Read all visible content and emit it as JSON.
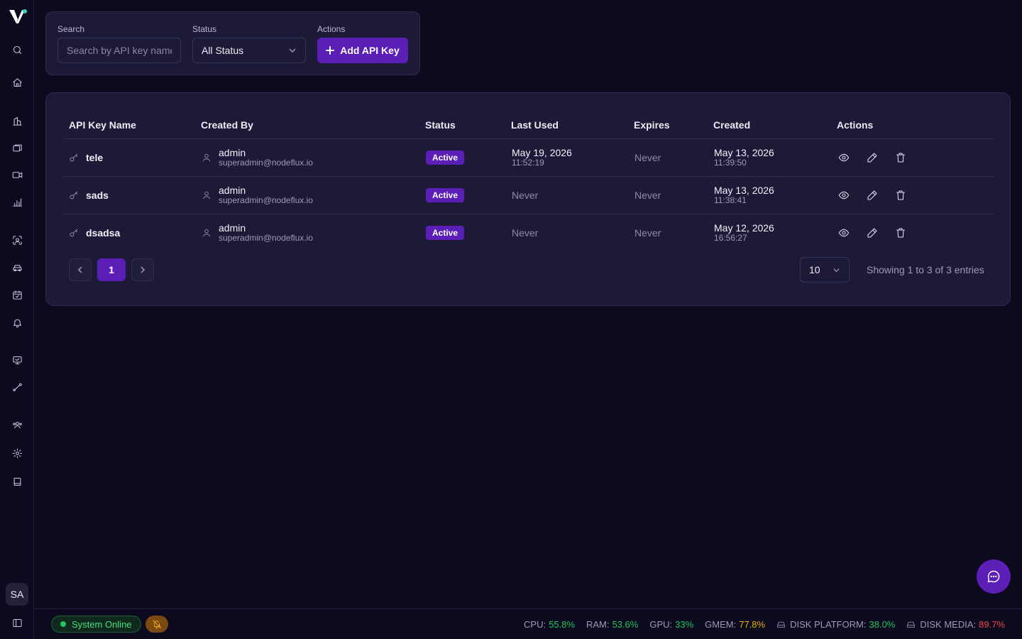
{
  "sidebar": {
    "logo": "nodeflux-logo",
    "icons": [
      "search-icon",
      "home-icon",
      "building-icon",
      "layers-icon",
      "camera-icon",
      "bar-chart-icon",
      "face-scan-icon",
      "car-icon",
      "calendar-icon",
      "bell-icon",
      "monitor-icon",
      "route-icon",
      "users-icon",
      "settings-icon",
      "book-icon"
    ],
    "avatar": "SA"
  },
  "filters": {
    "search_label": "Search",
    "search_placeholder": "Search by API key name",
    "status_label": "Status",
    "status_value": "All Status",
    "actions_label": "Actions",
    "add_button": "Add API Key"
  },
  "table": {
    "headers": [
      "API Key Name",
      "Created By",
      "Status",
      "Last Used",
      "Expires",
      "Created",
      "Actions"
    ],
    "rows": [
      {
        "name": "tele",
        "creator_name": "admin",
        "creator_email": "superadmin@nodeflux.io",
        "status": "Active",
        "last_used_date": "May 19, 2026",
        "last_used_time": "11:52:19",
        "expires": "Never",
        "created_date": "May 13, 2026",
        "created_time": "11:39:50"
      },
      {
        "name": "sads",
        "creator_name": "admin",
        "creator_email": "superadmin@nodeflux.io",
        "status": "Active",
        "last_used_date": "Never",
        "last_used_time": "",
        "expires": "Never",
        "created_date": "May 13, 2026",
        "created_time": "11:38:41"
      },
      {
        "name": "dsadsa",
        "creator_name": "admin",
        "creator_email": "superadmin@nodeflux.io",
        "status": "Active",
        "last_used_date": "Never",
        "last_used_time": "",
        "expires": "Never",
        "created_date": "May 12, 2026",
        "created_time": "16:56:27"
      }
    ],
    "current_page": "1",
    "per_page": "10",
    "showing": "Showing 1 to 3 of 3 entries"
  },
  "footer": {
    "system_status": "System Online",
    "cpu_label": "CPU:",
    "cpu": "55.8%",
    "ram_label": "RAM:",
    "ram": "53.6%",
    "gpu_label": "GPU:",
    "gpu": "33%",
    "gmem_label": "GMEM:",
    "gmem": "77.8%",
    "disk_platform_label": "DISK PLATFORM:",
    "disk_platform": "38.0%",
    "disk_media_label": "DISK MEDIA:",
    "disk_media": "89.7%"
  },
  "colors": {
    "accent": "#5b1fb8",
    "background": "#0c0a1f",
    "card": "#1c1a36",
    "ok": "#22c55e",
    "warn": "#eab308",
    "danger": "#ef4444"
  }
}
